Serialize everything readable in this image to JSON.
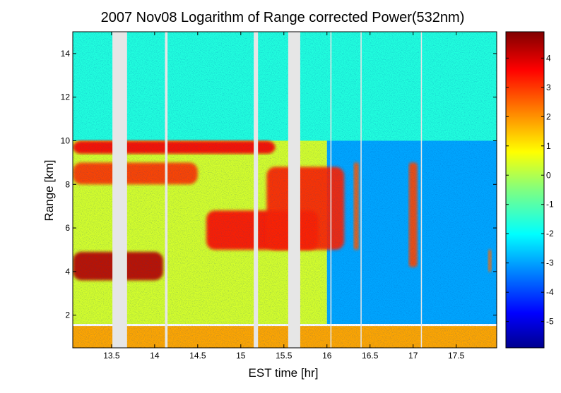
{
  "chart_data": {
    "type": "heatmap",
    "title": "2007 Nov08  Logarithm of Range corrected Power(532nm)",
    "xlabel": "EST time [hr]",
    "ylabel": "Range [km]",
    "xlim": [
      13.05,
      17.97
    ],
    "ylim": [
      0.5,
      15
    ],
    "x_ticks": [
      "13.5",
      "14",
      "14.5",
      "15",
      "15.5",
      "16",
      "16.5",
      "17",
      "17.5"
    ],
    "y_ticks": [
      "2",
      "4",
      "6",
      "8",
      "10",
      "12",
      "14"
    ],
    "colorbar": {
      "range": [
        -5.9,
        4.9
      ],
      "ticks": [
        "4",
        "3",
        "2",
        "1",
        "0",
        "-1",
        "-2",
        "-3",
        "-4",
        "-5"
      ],
      "colormap": [
        "#00008f",
        "#0000ff",
        "#0080ff",
        "#00ffff",
        "#80ff80",
        "#ffff00",
        "#ff8000",
        "#ff0000",
        "#800000"
      ]
    },
    "data_gaps_hr": [
      [
        13.51,
        13.68
      ],
      [
        14.12,
        14.15
      ],
      [
        15.15,
        15.2
      ],
      [
        15.55,
        15.69
      ],
      [
        16.04,
        16.05
      ],
      [
        16.39,
        16.4
      ],
      [
        17.09,
        17.1
      ]
    ],
    "layers": [
      {
        "name": "background-upper",
        "t": [
          13.05,
          17.97
        ],
        "z": [
          10,
          15
        ],
        "value": -1.5
      },
      {
        "name": "background-mid",
        "t": [
          13.05,
          16.0
        ],
        "z": [
          1.6,
          10
        ],
        "value": 0.4
      },
      {
        "name": "clear-late",
        "t": [
          16.0,
          17.97
        ],
        "z": [
          1.6,
          10
        ],
        "value": -2.8
      },
      {
        "name": "boundary-layer",
        "t": [
          13.05,
          17.97
        ],
        "z": [
          0.5,
          1.5
        ],
        "value": 1.8
      },
      {
        "name": "cirrus-top",
        "t": [
          13.05,
          15.4
        ],
        "z": [
          9.4,
          10.0
        ],
        "value": 3.6
      },
      {
        "name": "cloud-low-left",
        "t": [
          13.05,
          14.1
        ],
        "z": [
          3.6,
          4.9
        ],
        "value": 4.3
      },
      {
        "name": "cloud-mid",
        "t": [
          14.6,
          15.9
        ],
        "z": [
          5.0,
          6.8
        ],
        "value": 3.4
      },
      {
        "name": "cloud-fall-streak",
        "t": [
          15.3,
          16.2
        ],
        "z": [
          5.0,
          8.8
        ],
        "value": 3.2
      },
      {
        "name": "cloud-band-left",
        "t": [
          13.05,
          14.5
        ],
        "z": [
          8.0,
          9.0
        ],
        "value": 3.0
      },
      {
        "name": "column-1",
        "t": [
          16.31,
          16.37
        ],
        "z": [
          5.0,
          9.0
        ],
        "value": 2.6
      },
      {
        "name": "column-2",
        "t": [
          16.95,
          17.05
        ],
        "z": [
          4.2,
          9.0
        ],
        "value": 2.8
      },
      {
        "name": "column-3",
        "t": [
          17.87,
          17.91
        ],
        "z": [
          4.0,
          5.0
        ],
        "value": 2.4
      }
    ]
  }
}
